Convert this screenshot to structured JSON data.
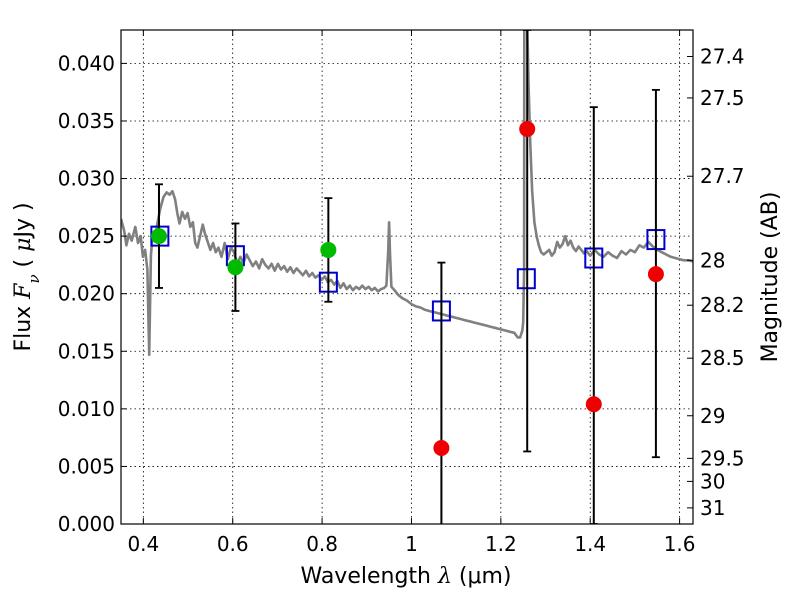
{
  "chart_data": {
    "type": "scatter",
    "title": "",
    "xlabel": "Wavelength  λ (μm)",
    "xlabel_parts": {
      "text": "Wavelength  ",
      "symbol": "λ",
      "unit": " (μm)"
    },
    "ylabel": "Flux  Fν  ( μJy )",
    "ylabel_parts": {
      "text": "Flux  ",
      "symbol": "F",
      "subscript": "ν",
      "unit_open": "  ( ",
      "mu": "μ",
      "unit_close": "Jy )"
    },
    "y2label": "Magnitude (AB)",
    "xlim": [
      0.35,
      1.63
    ],
    "ylim": [
      0.0,
      0.0429
    ],
    "grid": true,
    "x_ticks": [
      0.4,
      0.6,
      0.8,
      1.0,
      1.2,
      1.4,
      1.6
    ],
    "x_tick_labels": [
      "0.4",
      "0.6",
      "0.8",
      "1",
      "1.2",
      "1.4",
      "1.6"
    ],
    "y_ticks": [
      0.0,
      0.005,
      0.01,
      0.015,
      0.02,
      0.025,
      0.03,
      0.035,
      0.04
    ],
    "y_tick_labels": [
      "0.000",
      "0.005",
      "0.010",
      "0.015",
      "0.020",
      "0.025",
      "0.030",
      "0.035",
      "0.040"
    ],
    "y2_ticks": [
      {
        "label": "27.4",
        "flux": 0.0406
      },
      {
        "label": "27.5",
        "flux": 0.037
      },
      {
        "label": "27.7",
        "flux": 0.0302
      },
      {
        "label": "28",
        "flux": 0.0229
      },
      {
        "label": "28.2",
        "flux": 0.019
      },
      {
        "label": "28.5",
        "flux": 0.0144
      },
      {
        "label": "29",
        "flux": 0.0094
      },
      {
        "label": "29.5",
        "flux": 0.0057
      },
      {
        "label": "30",
        "flux": 0.0037
      },
      {
        "label": "31",
        "flux": 0.0014
      }
    ],
    "series": [
      {
        "kind": "line",
        "color": "#808080",
        "points": [
          [
            0.35,
            0.0265
          ],
          [
            0.357,
            0.0255
          ],
          [
            0.362,
            0.0242
          ],
          [
            0.368,
            0.0252
          ],
          [
            0.374,
            0.0246
          ],
          [
            0.382,
            0.0258
          ],
          [
            0.388,
            0.0244
          ],
          [
            0.394,
            0.025
          ],
          [
            0.399,
            0.0232
          ],
          [
            0.404,
            0.0238
          ],
          [
            0.409,
            0.0221
          ],
          [
            0.413,
            0.0147
          ],
          [
            0.417,
            0.0233
          ],
          [
            0.421,
            0.0252
          ],
          [
            0.426,
            0.0248
          ],
          [
            0.432,
            0.0262
          ],
          [
            0.438,
            0.0274
          ],
          [
            0.445,
            0.0284
          ],
          [
            0.452,
            0.0288
          ],
          [
            0.459,
            0.0286
          ],
          [
            0.465,
            0.0289
          ],
          [
            0.471,
            0.0282
          ],
          [
            0.476,
            0.027
          ],
          [
            0.481,
            0.0261
          ],
          [
            0.487,
            0.0271
          ],
          [
            0.493,
            0.0265
          ],
          [
            0.499,
            0.027
          ],
          [
            0.505,
            0.0258
          ],
          [
            0.511,
            0.0262
          ],
          [
            0.516,
            0.0244
          ],
          [
            0.521,
            0.024
          ],
          [
            0.527,
            0.025
          ],
          [
            0.533,
            0.026
          ],
          [
            0.538,
            0.0252
          ],
          [
            0.544,
            0.0245
          ],
          [
            0.55,
            0.0238
          ],
          [
            0.556,
            0.0244
          ],
          [
            0.562,
            0.0236
          ],
          [
            0.568,
            0.024
          ],
          [
            0.575,
            0.0232
          ],
          [
            0.582,
            0.0244
          ],
          [
            0.589,
            0.023
          ],
          [
            0.596,
            0.024
          ],
          [
            0.603,
            0.0236
          ],
          [
            0.61,
            0.0226
          ],
          [
            0.617,
            0.0232
          ],
          [
            0.624,
            0.0227
          ],
          [
            0.631,
            0.0234
          ],
          [
            0.638,
            0.0229
          ],
          [
            0.645,
            0.0224
          ],
          [
            0.652,
            0.0228
          ],
          [
            0.659,
            0.0222
          ],
          [
            0.666,
            0.023
          ],
          [
            0.673,
            0.0225
          ],
          [
            0.68,
            0.0222
          ],
          [
            0.687,
            0.0226
          ],
          [
            0.694,
            0.022
          ],
          [
            0.701,
            0.0226
          ],
          [
            0.708,
            0.0221
          ],
          [
            0.715,
            0.0224
          ],
          [
            0.722,
            0.0219
          ],
          [
            0.729,
            0.0223
          ],
          [
            0.736,
            0.0218
          ],
          [
            0.743,
            0.0222
          ],
          [
            0.75,
            0.0219
          ],
          [
            0.757,
            0.0216
          ],
          [
            0.764,
            0.022
          ],
          [
            0.771,
            0.0215
          ],
          [
            0.778,
            0.0218
          ],
          [
            0.785,
            0.0214
          ],
          [
            0.792,
            0.0216
          ],
          [
            0.799,
            0.0212
          ],
          [
            0.806,
            0.0215
          ],
          [
            0.813,
            0.021
          ],
          [
            0.82,
            0.0212
          ],
          [
            0.827,
            0.0208
          ],
          [
            0.834,
            0.0211
          ],
          [
            0.841,
            0.0205
          ],
          [
            0.848,
            0.0209
          ],
          [
            0.855,
            0.0204
          ],
          [
            0.862,
            0.0207
          ],
          [
            0.869,
            0.0203
          ],
          [
            0.876,
            0.0206
          ],
          [
            0.883,
            0.0204
          ],
          [
            0.89,
            0.0207
          ],
          [
            0.897,
            0.0204
          ],
          [
            0.904,
            0.0206
          ],
          [
            0.911,
            0.0203
          ],
          [
            0.918,
            0.0205
          ],
          [
            0.925,
            0.0202
          ],
          [
            0.932,
            0.0204
          ],
          [
            0.939,
            0.0205
          ],
          [
            0.944,
            0.0207
          ],
          [
            0.948,
            0.0237
          ],
          [
            0.95,
            0.0262
          ],
          [
            0.952,
            0.0235
          ],
          [
            0.955,
            0.0206
          ],
          [
            0.962,
            0.0203
          ],
          [
            0.97,
            0.0199
          ],
          [
            0.98,
            0.0196
          ],
          [
            0.99,
            0.0194
          ],
          [
            1.0,
            0.0191
          ],
          [
            1.01,
            0.0189
          ],
          [
            1.02,
            0.0188
          ],
          [
            1.03,
            0.0186
          ],
          [
            1.04,
            0.0185
          ],
          [
            1.05,
            0.0184
          ],
          [
            1.06,
            0.0183
          ],
          [
            1.07,
            0.0182
          ],
          [
            1.08,
            0.0181
          ],
          [
            1.09,
            0.018
          ],
          [
            1.1,
            0.0179
          ],
          [
            1.11,
            0.0178
          ],
          [
            1.12,
            0.0177
          ],
          [
            1.13,
            0.0176
          ],
          [
            1.14,
            0.0175
          ],
          [
            1.15,
            0.0174
          ],
          [
            1.16,
            0.0173
          ],
          [
            1.17,
            0.0172
          ],
          [
            1.18,
            0.0171
          ],
          [
            1.19,
            0.017
          ],
          [
            1.2,
            0.0169
          ],
          [
            1.21,
            0.0168
          ],
          [
            1.22,
            0.0167
          ],
          [
            1.23,
            0.0166
          ],
          [
            1.238,
            0.0162
          ],
          [
            1.243,
            0.0162
          ],
          [
            1.248,
            0.0168
          ],
          [
            1.25,
            0.0175
          ],
          [
            1.252,
            0.022
          ],
          [
            1.2525,
            0.0429
          ]
        ]
      },
      {
        "kind": "line",
        "color": "#808080",
        "points": [
          [
            1.2595,
            0.0429
          ],
          [
            1.262,
            0.038
          ],
          [
            1.266,
            0.033
          ],
          [
            1.27,
            0.029
          ],
          [
            1.275,
            0.0262
          ],
          [
            1.28,
            0.025
          ],
          [
            1.285,
            0.0242
          ],
          [
            1.29,
            0.0236
          ],
          [
            1.296,
            0.0234
          ],
          [
            1.302,
            0.0236
          ],
          [
            1.308,
            0.0238
          ],
          [
            1.314,
            0.0233
          ],
          [
            1.32,
            0.0236
          ],
          [
            1.326,
            0.0245
          ],
          [
            1.332,
            0.024
          ],
          [
            1.338,
            0.0243
          ],
          [
            1.344,
            0.025
          ],
          [
            1.35,
            0.0242
          ],
          [
            1.356,
            0.0246
          ],
          [
            1.362,
            0.024
          ],
          [
            1.368,
            0.0237
          ],
          [
            1.374,
            0.0241
          ],
          [
            1.38,
            0.0238
          ],
          [
            1.386,
            0.0235
          ],
          [
            1.392,
            0.0237
          ],
          [
            1.4,
            0.0233
          ],
          [
            1.41,
            0.0238
          ],
          [
            1.42,
            0.0234
          ],
          [
            1.43,
            0.0232
          ],
          [
            1.44,
            0.0236
          ],
          [
            1.45,
            0.0233
          ],
          [
            1.46,
            0.0231
          ],
          [
            1.47,
            0.0237
          ],
          [
            1.48,
            0.0234
          ],
          [
            1.49,
            0.0238
          ],
          [
            1.5,
            0.0236
          ],
          [
            1.51,
            0.0242
          ],
          [
            1.52,
            0.024
          ],
          [
            1.53,
            0.0245
          ],
          [
            1.54,
            0.0241
          ],
          [
            1.55,
            0.0238
          ],
          [
            1.56,
            0.0236
          ],
          [
            1.57,
            0.0234
          ],
          [
            1.58,
            0.0232
          ],
          [
            1.59,
            0.0231
          ],
          [
            1.6,
            0.023
          ],
          [
            1.61,
            0.0229
          ],
          [
            1.62,
            0.0229
          ],
          [
            1.63,
            0.0228
          ]
        ]
      },
      {
        "kind": "model-points",
        "marker": "open-square",
        "color": "#0000cc",
        "x": [
          0.437,
          0.606,
          0.814,
          1.067,
          1.257,
          1.408,
          1.547
        ],
        "y": [
          0.025,
          0.0233,
          0.021,
          0.0185,
          0.0213,
          0.0231,
          0.0247
        ]
      },
      {
        "kind": "measured",
        "marker": "filled-circle",
        "color": "#00bb00",
        "x": [
          0.435,
          0.606,
          0.814
        ],
        "y": [
          0.025,
          0.0223,
          0.0238
        ],
        "yerr_low": [
          0.0045,
          0.0038,
          0.0045
        ],
        "yerr_high": [
          0.0045,
          0.0038,
          0.0045
        ]
      },
      {
        "kind": "measured",
        "marker": "filled-circle",
        "color": "#ee0000",
        "x": [
          1.067,
          1.259,
          1.408,
          1.547
        ],
        "y": [
          0.0066,
          0.0343,
          0.0104,
          0.0217
        ],
        "yerr_low": [
          0.0081,
          0.028,
          0.0104,
          0.0159
        ],
        "yerr_high": [
          0.0161,
          0.0086,
          0.0258,
          0.016
        ]
      }
    ]
  }
}
